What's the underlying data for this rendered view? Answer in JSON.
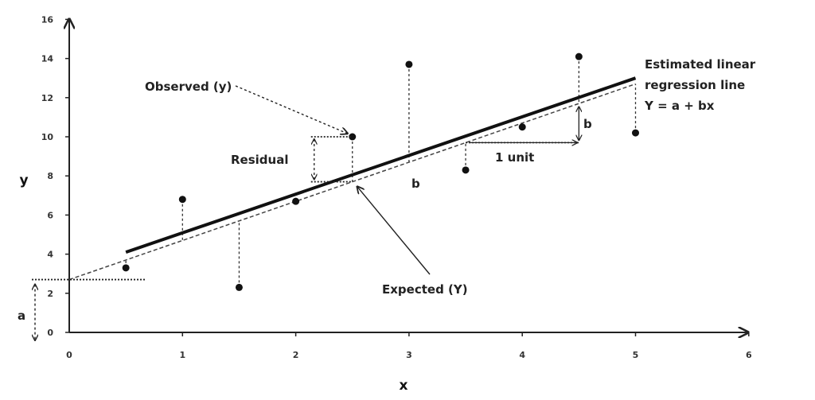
{
  "chart_data": {
    "type": "scatter",
    "title": "",
    "xlabel": "x",
    "ylabel": "y",
    "xlim": [
      0,
      6
    ],
    "ylim": [
      0,
      16
    ],
    "x_ticks": [
      "0",
      "1",
      "2",
      "3",
      "4",
      "5",
      "6"
    ],
    "y_ticks": [
      "0",
      "2",
      "4",
      "6",
      "8",
      "10",
      "12",
      "14",
      "16"
    ],
    "grid": false,
    "points": [
      {
        "x": 0.5,
        "y": 3.3
      },
      {
        "x": 1.0,
        "y": 6.8
      },
      {
        "x": 1.5,
        "y": 2.3
      },
      {
        "x": 2.0,
        "y": 6.7
      },
      {
        "x": 2.5,
        "y": 10.0
      },
      {
        "x": 3.0,
        "y": 13.7
      },
      {
        "x": 3.5,
        "y": 8.3
      },
      {
        "x": 4.0,
        "y": 10.5
      },
      {
        "x": 4.5,
        "y": 14.1
      },
      {
        "x": 5.0,
        "y": 10.2
      }
    ],
    "estimated_line": {
      "x": [
        0.5,
        5.0
      ],
      "y": [
        4.1,
        13.0
      ]
    },
    "expected_line": {
      "intercept": 2.7,
      "slope": 2.0,
      "x": [
        0,
        5.0
      ]
    },
    "annotations": {
      "line_label": [
        "Estimated linear",
        "regression line",
        "Y = a + bx"
      ],
      "observed": "Observed (y)",
      "expected": "Expected (Y)",
      "residual": "Residual",
      "b_mid": "b",
      "b_right": "b",
      "one_unit": "1 unit",
      "a": "a"
    }
  }
}
